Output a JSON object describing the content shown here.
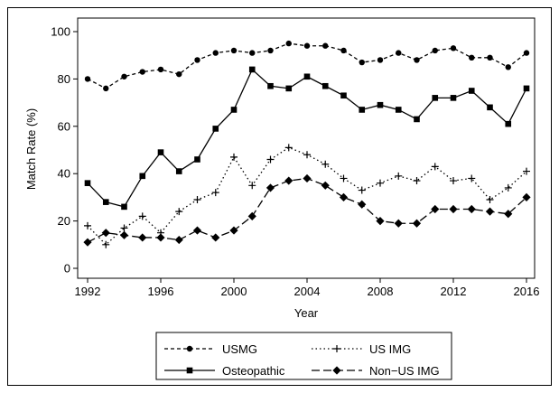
{
  "chart_data": {
    "type": "line",
    "title": "",
    "xlabel": "Year",
    "ylabel": "Match Rate (%)",
    "xlim": [
      1992,
      2016
    ],
    "ylim": [
      0,
      100
    ],
    "x_ticks": [
      "1992",
      "1996",
      "2000",
      "2004",
      "2008",
      "2012",
      "2016"
    ],
    "y_ticks": [
      "0",
      "20",
      "40",
      "60",
      "80",
      "100"
    ],
    "grid": false,
    "legend_position": "bottom",
    "x": [
      1992,
      1993,
      1994,
      1995,
      1996,
      1997,
      1998,
      1999,
      2000,
      2001,
      2002,
      2003,
      2004,
      2005,
      2006,
      2007,
      2008,
      2009,
      2010,
      2011,
      2012,
      2013,
      2014,
      2015,
      2016
    ],
    "series": [
      {
        "name": "USMG",
        "line_style": "short-dash",
        "marker": "circle",
        "color": "#000000",
        "values": [
          80,
          76,
          81,
          83,
          84,
          82,
          88,
          91,
          92,
          91,
          92,
          95,
          94,
          94,
          92,
          87,
          88,
          91,
          88,
          92,
          93,
          89,
          89,
          85,
          91
        ]
      },
      {
        "name": "US IMG",
        "line_style": "dot",
        "marker": "plus",
        "color": "#000000",
        "values": [
          18,
          10,
          17,
          22,
          15,
          24,
          29,
          32,
          47,
          35,
          46,
          51,
          48,
          44,
          38,
          33,
          36,
          39,
          37,
          43,
          37,
          38,
          29,
          34,
          41
        ]
      },
      {
        "name": "Osteopathic",
        "line_style": "solid",
        "marker": "square",
        "color": "#000000",
        "values": [
          36,
          28,
          26,
          39,
          49,
          41,
          46,
          59,
          67,
          84,
          77,
          76,
          81,
          77,
          73,
          67,
          69,
          67,
          63,
          72,
          72,
          75,
          68,
          61,
          76
        ]
      },
      {
        "name": "Non−US IMG",
        "line_style": "long-dash",
        "marker": "diamond",
        "color": "#000000",
        "values": [
          11,
          15,
          14,
          13,
          13,
          12,
          16,
          13,
          16,
          22,
          34,
          37,
          38,
          35,
          30,
          27,
          20,
          19,
          19,
          25,
          25,
          25,
          24,
          23,
          30
        ]
      }
    ]
  }
}
